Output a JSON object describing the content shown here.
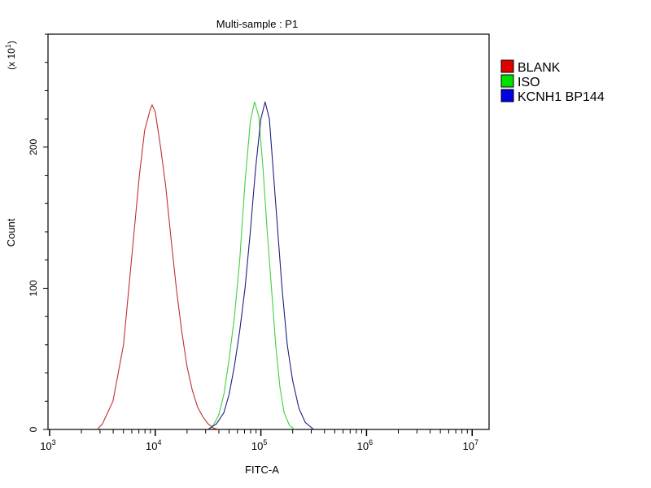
{
  "chart_data": {
    "type": "line",
    "title": "Multi-sample : P1",
    "xlabel": "FITC-A",
    "ylabel": "Count",
    "y_multiplier": "(x 10",
    "y_multiplier_exp": "1",
    "y_multiplier_close": ")",
    "xscale": "log10",
    "xlim_log10": [
      2.985,
      7.16
    ],
    "ylim": [
      0,
      280
    ],
    "x_ticks": [
      {
        "base": "10",
        "exp": "3",
        "value_log10": 3
      },
      {
        "base": "10",
        "exp": "4",
        "value_log10": 4
      },
      {
        "base": "10",
        "exp": "5",
        "value_log10": 5
      },
      {
        "base": "10",
        "exp": "6",
        "value_log10": 6
      },
      {
        "base": "10",
        "exp": "7",
        "value_log10": 7
      }
    ],
    "y_ticks": [
      {
        "label": "0",
        "value": 0
      },
      {
        "label": "100",
        "value": 100
      },
      {
        "label": "200",
        "value": 200
      }
    ],
    "legend_position": "right",
    "series": [
      {
        "name": "BLANK",
        "color": "#e00000",
        "line_color": "#c03030",
        "x_log10": [
          3.45,
          3.5,
          3.6,
          3.7,
          3.75,
          3.8,
          3.85,
          3.9,
          3.95,
          3.97,
          4.0,
          4.05,
          4.1,
          4.15,
          4.2,
          4.25,
          4.3,
          4.35,
          4.4,
          4.45,
          4.5,
          4.55,
          4.6
        ],
        "y": [
          0,
          4,
          20,
          60,
          100,
          140,
          180,
          212,
          226,
          230,
          225,
          200,
          172,
          135,
          100,
          70,
          45,
          28,
          16,
          9,
          4,
          1,
          0
        ]
      },
      {
        "name": "ISO",
        "color": "#00e000",
        "line_color": "#40d040",
        "x_log10": [
          4.5,
          4.55,
          4.6,
          4.65,
          4.7,
          4.75,
          4.8,
          4.85,
          4.9,
          4.94,
          4.98,
          5.02,
          5.06,
          5.1,
          5.14,
          5.18,
          5.22,
          5.27,
          5.32
        ],
        "y": [
          0,
          3,
          10,
          25,
          50,
          80,
          120,
          175,
          218,
          232,
          222,
          185,
          140,
          100,
          60,
          30,
          12,
          3,
          0
        ]
      },
      {
        "name": "KCNH1 BP144",
        "color": "#0000e0",
        "line_color": "#202080",
        "x_log10": [
          4.5,
          4.58,
          4.65,
          4.7,
          4.75,
          4.8,
          4.85,
          4.9,
          4.95,
          5.0,
          5.04,
          5.08,
          5.12,
          5.16,
          5.2,
          5.25,
          5.3,
          5.36,
          5.42,
          5.5
        ],
        "y": [
          0,
          4,
          12,
          25,
          45,
          70,
          100,
          140,
          185,
          220,
          232,
          220,
          180,
          140,
          100,
          60,
          35,
          15,
          5,
          0
        ]
      }
    ]
  }
}
